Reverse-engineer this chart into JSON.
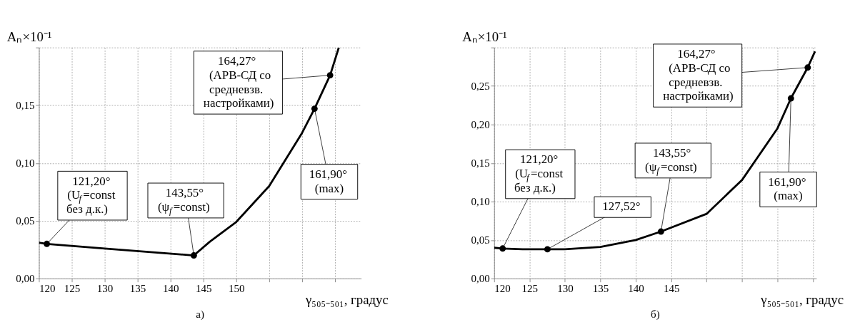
{
  "chart_data": [
    {
      "type": "line",
      "title": "а)",
      "xlabel": "γ₅₀₅₋₅₀₁, градус",
      "ylabel": "Aₙ×10⁻¹",
      "grid": true,
      "xlim": [
        120,
        169
      ],
      "xticks": [
        120,
        125,
        130,
        135,
        140,
        145,
        150,
        {
          "value": 155,
          "label": null
        },
        {
          "value": 160,
          "label": null
        },
        {
          "value": 165,
          "label": null
        }
      ],
      "ylim": [
        0,
        0.2
      ],
      "yticks": [
        {
          "value": 0,
          "label": "0,00"
        },
        {
          "value": 0.05,
          "label": "0,05"
        },
        {
          "value": 0.1,
          "label": "0,10"
        },
        {
          "value": 0.15,
          "label": "0,15"
        },
        {
          "value": 0.2,
          "label": null
        }
      ],
      "series": [
        {
          "color": "#000000",
          "x": [
            120,
            121.2,
            130,
            143.55,
            146,
            150,
            155,
            160,
            161.9,
            164.27,
            165.6
          ],
          "values": [
            0.031,
            0.03,
            0.026,
            0.02,
            0.032,
            0.049,
            0.08,
            0.126,
            0.147,
            0.176,
            0.2
          ]
        },
        {
          "type": "scatter",
          "color": "#000000",
          "x": [
            121.2,
            143.55,
            161.9,
            164.27
          ],
          "values": [
            0.03,
            0.02,
            0.147,
            0.176
          ]
        }
      ],
      "annotations": [
        {
          "text": "121,20°\n(U$_{f}$=const\nбез д.к.)",
          "x": 121.2,
          "y": 0.03
        },
        {
          "text": "143,55°\n(ψ$_{f}$=const)",
          "x": 143.55,
          "y": 0.02
        },
        {
          "text": "161,90°\n(max)",
          "x": 161.9,
          "y": 0.147
        },
        {
          "text": "164,27°\n(АРВ-СД со\nсредневзв.\nнастройками)",
          "x": 164.27,
          "y": 0.176
        }
      ]
    },
    {
      "type": "line",
      "title": "б)",
      "xlabel": "γ₅₀₅₋₅₀₁, градус",
      "ylabel": "Aₙ×10⁻¹",
      "grid": true,
      "xlim": [
        120,
        165.5
      ],
      "xticks": [
        120,
        125,
        130,
        135,
        140,
        145,
        {
          "value": 150,
          "label": null
        },
        {
          "value": 155,
          "label": null
        },
        {
          "value": 160,
          "label": null
        },
        {
          "value": 165,
          "label": null
        }
      ],
      "ylim": [
        0,
        0.3
      ],
      "yticks": [
        {
          "value": 0,
          "label": "0,00"
        },
        {
          "value": 0.05,
          "label": "0,05"
        },
        {
          "value": 0.1,
          "label": "0,10"
        },
        {
          "value": 0.15,
          "label": "0,15"
        },
        {
          "value": 0.2,
          "label": "0,20"
        },
        {
          "value": 0.25,
          "label": "0,25"
        },
        {
          "value": 0.3,
          "label": null
        }
      ],
      "series": [
        {
          "color": "#000000",
          "x": [
            120,
            121.2,
            124,
            127.52,
            130,
            135,
            140,
            143.55,
            150,
            155,
            160,
            161.9,
            164.27,
            165.3
          ],
          "values": [
            0.04,
            0.039,
            0.038,
            0.038,
            0.038,
            0.041,
            0.05,
            0.061,
            0.084,
            0.128,
            0.195,
            0.234,
            0.274,
            0.295
          ]
        },
        {
          "type": "scatter",
          "color": "#000000",
          "x": [
            121.2,
            127.52,
            143.55,
            161.9,
            164.27
          ],
          "values": [
            0.039,
            0.038,
            0.061,
            0.234,
            0.274
          ]
        }
      ],
      "annotations": [
        {
          "text": "121,20°\n(U$_{f}$=const\nбез д.к.)",
          "x": 121.2,
          "y": 0.039
        },
        {
          "text": "127,52°",
          "x": 127.52,
          "y": 0.038
        },
        {
          "text": "143,55°\n(ψ$_{f}$=const)",
          "x": 143.55,
          "y": 0.061
        },
        {
          "text": "161,90°\n(max)",
          "x": 161.9,
          "y": 0.234
        },
        {
          "text": "164,27°\n(АРВ-СД со\nсредневзв.\nнастройками)",
          "x": 164.27,
          "y": 0.274
        }
      ]
    }
  ]
}
